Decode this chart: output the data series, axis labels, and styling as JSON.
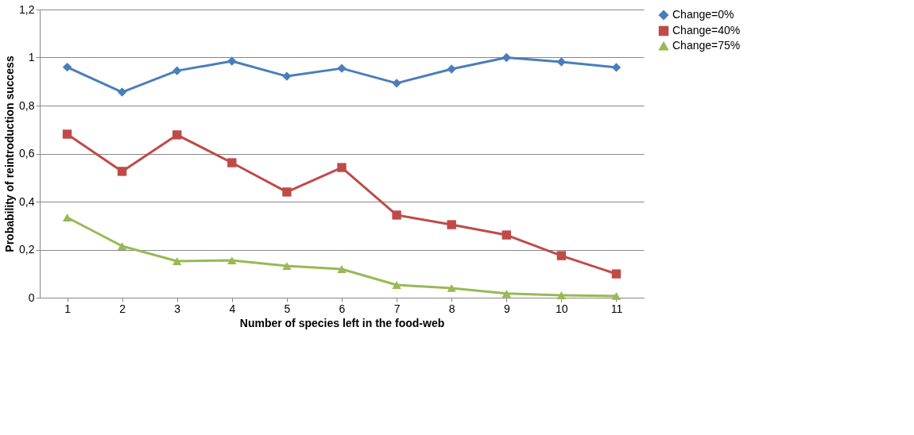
{
  "chart_data": {
    "type": "line",
    "xlabel": "Number of species left in the food-web",
    "ylabel": "Probability of reintroduction success",
    "categories": [
      "1",
      "2",
      "3",
      "4",
      "5",
      "6",
      "7",
      "8",
      "9",
      "10",
      "11"
    ],
    "series": [
      {
        "name": "Change=0%",
        "color": "#4a7ebb",
        "marker": "diamond",
        "values": [
          0.96,
          0.856,
          0.945,
          0.985,
          0.922,
          0.955,
          0.893,
          0.952,
          1.0,
          0.982,
          0.959
        ]
      },
      {
        "name": "Change=40%",
        "color": "#be4b48",
        "marker": "square",
        "values": [
          0.681,
          0.526,
          0.678,
          0.562,
          0.44,
          0.542,
          0.344,
          0.304,
          0.261,
          0.175,
          0.099
        ]
      },
      {
        "name": "Change=75%",
        "color": "#98b954",
        "marker": "triangle",
        "values": [
          0.334,
          0.215,
          0.152,
          0.155,
          0.132,
          0.119,
          0.053,
          0.04,
          0.017,
          0.01,
          0.007
        ]
      }
    ],
    "ylim": [
      0,
      1.2
    ],
    "yticks": [
      0,
      {
        "value": 0.2,
        "label": "0,2"
      },
      {
        "value": 0.4,
        "label": "0,4"
      },
      {
        "value": 0.6,
        "label": "0,6"
      },
      {
        "value": 0.8,
        "label": "0,8"
      },
      1,
      {
        "value": 1.2,
        "label": "1,2"
      }
    ],
    "grid": "y",
    "legend": "right",
    "line_style": "solid"
  }
}
